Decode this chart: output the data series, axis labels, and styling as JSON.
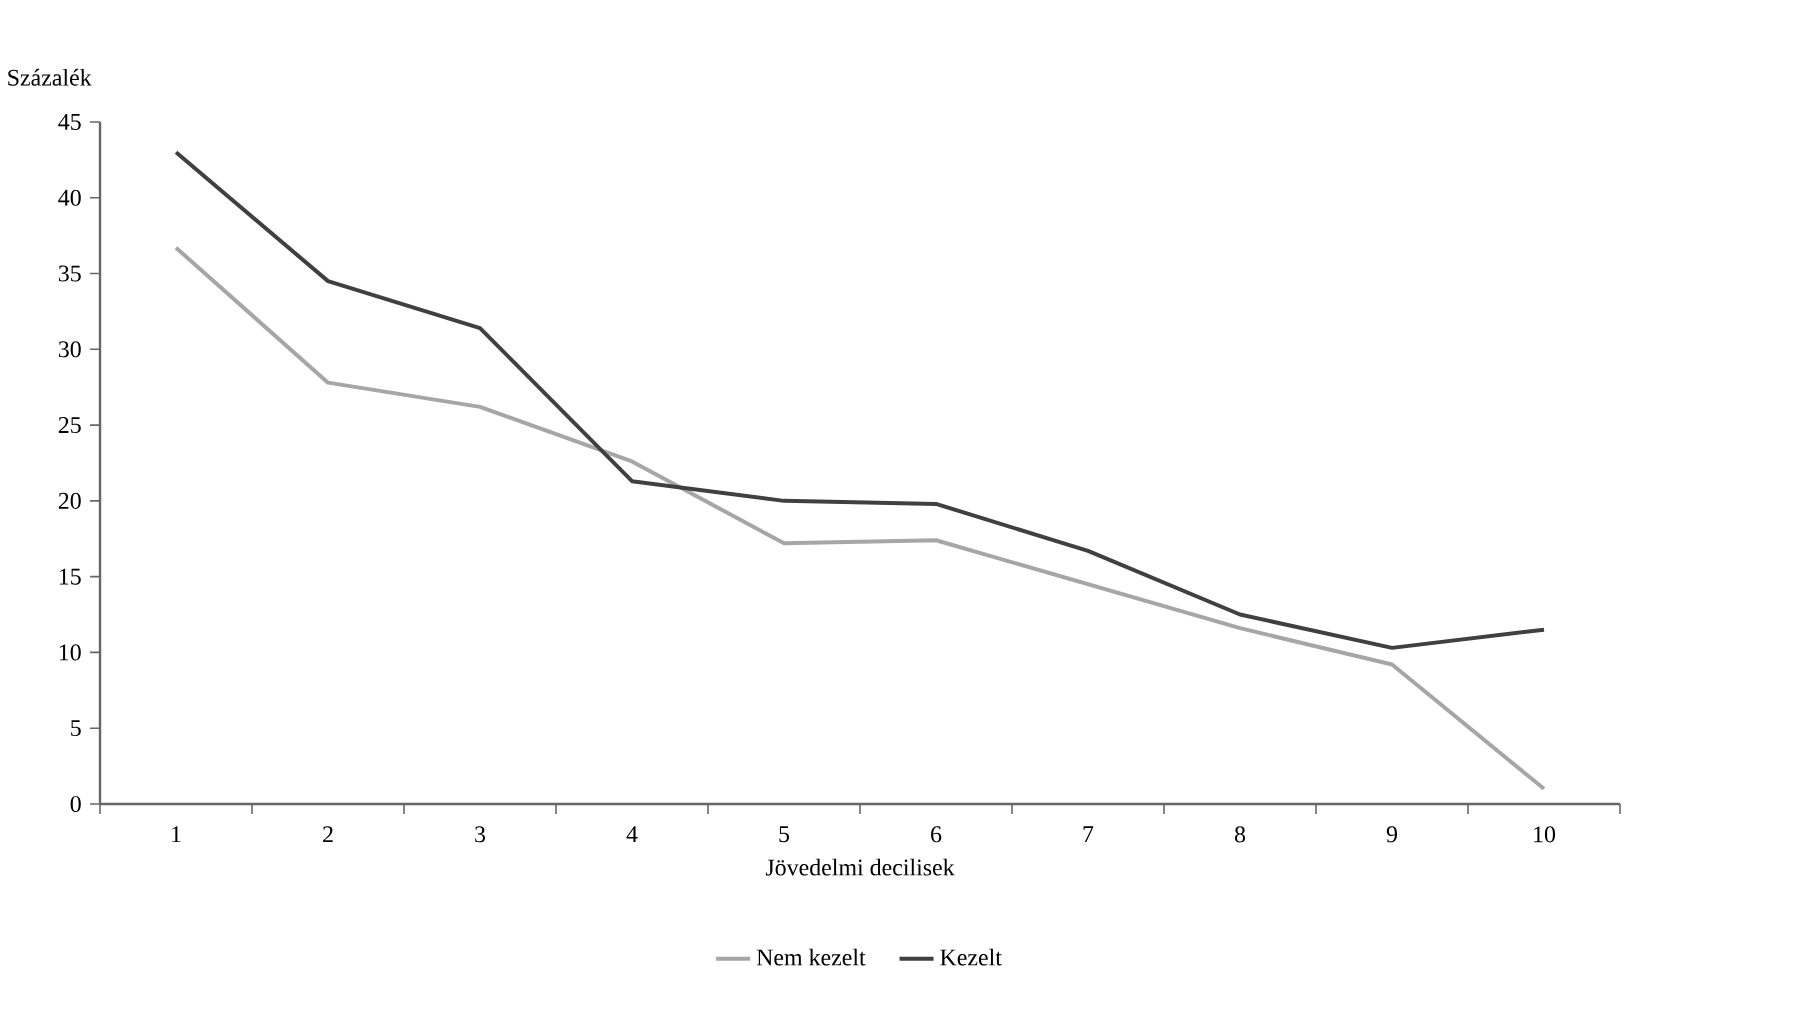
{
  "chart_data": {
    "type": "line",
    "ylabel": "Százalék",
    "xlabel": "Jövedelmi decilisek",
    "categories": [
      "1",
      "2",
      "3",
      "4",
      "5",
      "6",
      "7",
      "8",
      "9",
      "10"
    ],
    "series": [
      {
        "name": "Nem kezelt",
        "color": "#a6a6a6",
        "values": [
          36.7,
          27.8,
          26.2,
          22.6,
          17.2,
          17.4,
          14.5,
          11.6,
          9.2,
          1.0
        ]
      },
      {
        "name": "Kezelt",
        "color": "#404040",
        "values": [
          43.0,
          34.5,
          31.4,
          21.3,
          20.0,
          19.8,
          16.7,
          12.5,
          10.3,
          11.5
        ]
      }
    ],
    "ylim": [
      0,
      45
    ],
    "yticks": [
      0,
      5,
      10,
      15,
      20,
      25,
      30,
      35,
      40,
      45
    ],
    "grid": false,
    "legend": "bottom",
    "marker": "none",
    "line_style": "solid"
  }
}
